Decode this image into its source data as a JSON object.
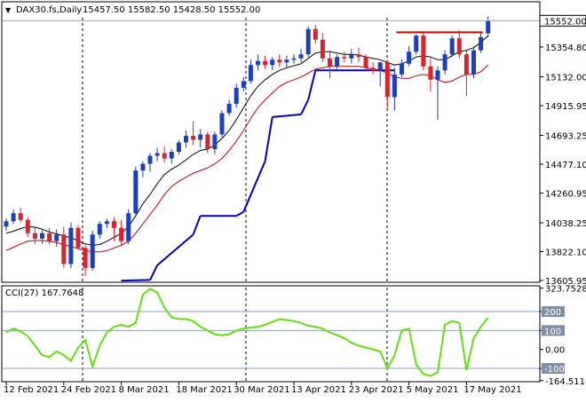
{
  "header": {
    "arrow": "▼",
    "symbol": "DAX30.fs,Daily",
    "ohlc": "15457.50 15582.50 15428.50 15552.00"
  },
  "cci_header": {
    "label": "CCI(27) 167.7648"
  },
  "chart_data": [
    {
      "type": "candlestick",
      "title": "DAX30.fs,Daily",
      "current_price": 15552.0,
      "current_price_label": "15552.00",
      "ylim": [
        13605.95,
        15650
      ],
      "y_ticks": [
        "15354.80",
        "15132.00",
        "14915.95",
        "14693.25",
        "14477.10",
        "14260.95",
        "14038.25",
        "13822.10",
        "13605.95"
      ],
      "y_tick_values": [
        15354.8,
        15132.0,
        14915.95,
        14693.25,
        14477.1,
        14260.95,
        14038.25,
        13822.1,
        13605.95
      ],
      "x_ticks": [
        "12 Feb 2021",
        "24 Feb 2021",
        "8 Mar 2021",
        "18 Mar 2021",
        "30 Mar 2021",
        "13 Apr 2021",
        "23 Apr 2021",
        "5 May 2021",
        "17 May 2021"
      ],
      "x_tick_bar_index": [
        0,
        8,
        16,
        24,
        32,
        40,
        48,
        56,
        64
      ],
      "period_separators_bar_index": [
        11,
        30,
        51
      ],
      "colors": {
        "up": "#1a3fc0",
        "down": "#e0202a",
        "fast_ma": "#000000",
        "slow_ma": "#cc0000",
        "trail": "#0000c0",
        "resistance": "#dd0000"
      },
      "candles": [
        {
          "o": 14010,
          "h": 14070,
          "l": 13980,
          "c": 14050
        },
        {
          "o": 14050,
          "h": 14140,
          "l": 14030,
          "c": 14110
        },
        {
          "o": 14110,
          "h": 14150,
          "l": 14040,
          "c": 14060
        },
        {
          "o": 14060,
          "h": 14080,
          "l": 13930,
          "c": 13960
        },
        {
          "o": 13960,
          "h": 14000,
          "l": 13880,
          "c": 13920
        },
        {
          "o": 13920,
          "h": 13990,
          "l": 13880,
          "c": 13960
        },
        {
          "o": 13960,
          "h": 14000,
          "l": 13880,
          "c": 13900
        },
        {
          "o": 13900,
          "h": 13990,
          "l": 13860,
          "c": 13950
        },
        {
          "o": 13950,
          "h": 14010,
          "l": 13700,
          "c": 13730
        },
        {
          "o": 13730,
          "h": 14040,
          "l": 13700,
          "c": 14000
        },
        {
          "o": 14000,
          "h": 14020,
          "l": 13840,
          "c": 13850
        },
        {
          "o": 13850,
          "h": 13870,
          "l": 13640,
          "c": 13700
        },
        {
          "o": 13700,
          "h": 13980,
          "l": 13680,
          "c": 13950
        },
        {
          "o": 13950,
          "h": 14050,
          "l": 13920,
          "c": 14030
        },
        {
          "o": 14030,
          "h": 14070,
          "l": 14000,
          "c": 14050
        },
        {
          "o": 14050,
          "h": 14080,
          "l": 13900,
          "c": 14000
        },
        {
          "o": 14000,
          "h": 14060,
          "l": 13870,
          "c": 13900
        },
        {
          "o": 13900,
          "h": 14140,
          "l": 13880,
          "c": 14110
        },
        {
          "o": 14110,
          "h": 14460,
          "l": 14100,
          "c": 14430
        },
        {
          "o": 14430,
          "h": 14500,
          "l": 14380,
          "c": 14480
        },
        {
          "o": 14480,
          "h": 14560,
          "l": 14420,
          "c": 14540
        },
        {
          "o": 14540,
          "h": 14600,
          "l": 14500,
          "c": 14560
        },
        {
          "o": 14560,
          "h": 14610,
          "l": 14490,
          "c": 14520
        },
        {
          "o": 14520,
          "h": 14590,
          "l": 14480,
          "c": 14570
        },
        {
          "o": 14570,
          "h": 14660,
          "l": 14550,
          "c": 14640
        },
        {
          "o": 14640,
          "h": 14730,
          "l": 14600,
          "c": 14690
        },
        {
          "o": 14690,
          "h": 14800,
          "l": 14620,
          "c": 14660
        },
        {
          "o": 14660,
          "h": 14740,
          "l": 14600,
          "c": 14700
        },
        {
          "o": 14700,
          "h": 14720,
          "l": 14560,
          "c": 14590
        },
        {
          "o": 14590,
          "h": 14720,
          "l": 14550,
          "c": 14700
        },
        {
          "o": 14700,
          "h": 14880,
          "l": 14680,
          "c": 14860
        },
        {
          "o": 14860,
          "h": 14960,
          "l": 14840,
          "c": 14930
        },
        {
          "o": 14930,
          "h": 15080,
          "l": 14900,
          "c": 15050
        },
        {
          "o": 15050,
          "h": 15130,
          "l": 15020,
          "c": 15100
        },
        {
          "o": 15100,
          "h": 15260,
          "l": 15080,
          "c": 15220
        },
        {
          "o": 15220,
          "h": 15300,
          "l": 15180,
          "c": 15250
        },
        {
          "o": 15250,
          "h": 15290,
          "l": 15190,
          "c": 15220
        },
        {
          "o": 15220,
          "h": 15280,
          "l": 15180,
          "c": 15260
        },
        {
          "o": 15260,
          "h": 15300,
          "l": 15210,
          "c": 15240
        },
        {
          "o": 15240,
          "h": 15290,
          "l": 15200,
          "c": 15260
        },
        {
          "o": 15260,
          "h": 15300,
          "l": 15230,
          "c": 15270
        },
        {
          "o": 15270,
          "h": 15340,
          "l": 15240,
          "c": 15300
        },
        {
          "o": 15300,
          "h": 15510,
          "l": 15280,
          "c": 15490
        },
        {
          "o": 15490,
          "h": 15520,
          "l": 15380,
          "c": 15410
        },
        {
          "o": 15410,
          "h": 15460,
          "l": 15240,
          "c": 15270
        },
        {
          "o": 15270,
          "h": 15330,
          "l": 15120,
          "c": 15210
        },
        {
          "o": 15210,
          "h": 15300,
          "l": 15190,
          "c": 15280
        },
        {
          "o": 15280,
          "h": 15320,
          "l": 15240,
          "c": 15270
        },
        {
          "o": 15270,
          "h": 15340,
          "l": 15230,
          "c": 15300
        },
        {
          "o": 15300,
          "h": 15350,
          "l": 15240,
          "c": 15280
        },
        {
          "o": 15280,
          "h": 15300,
          "l": 15180,
          "c": 15200
        },
        {
          "o": 15200,
          "h": 15240,
          "l": 15150,
          "c": 15180
        },
        {
          "o": 15180,
          "h": 15240,
          "l": 15060,
          "c": 15240
        },
        {
          "o": 15240,
          "h": 15260,
          "l": 14890,
          "c": 14980
        },
        {
          "o": 14980,
          "h": 15200,
          "l": 14880,
          "c": 15150
        },
        {
          "o": 15150,
          "h": 15260,
          "l": 15130,
          "c": 15230
        },
        {
          "o": 15230,
          "h": 15360,
          "l": 15210,
          "c": 15320
        },
        {
          "o": 15320,
          "h": 15450,
          "l": 15300,
          "c": 15440
        },
        {
          "o": 15440,
          "h": 15460,
          "l": 15180,
          "c": 15210
        },
        {
          "o": 15210,
          "h": 15270,
          "l": 15020,
          "c": 15110
        },
        {
          "o": 15110,
          "h": 15210,
          "l": 14810,
          "c": 15180
        },
        {
          "o": 15180,
          "h": 15330,
          "l": 15150,
          "c": 15300
        },
        {
          "o": 15300,
          "h": 15440,
          "l": 15280,
          "c": 15420
        },
        {
          "o": 15420,
          "h": 15480,
          "l": 15270,
          "c": 15300
        },
        {
          "o": 15300,
          "h": 15330,
          "l": 14990,
          "c": 15150
        },
        {
          "o": 15150,
          "h": 15360,
          "l": 15120,
          "c": 15330
        },
        {
          "o": 15330,
          "h": 15460,
          "l": 15310,
          "c": 15430
        },
        {
          "o": 15457.5,
          "h": 15582.5,
          "l": 15428.5,
          "c": 15552
        }
      ],
      "fast_ma": [
        13960,
        13975,
        13995,
        14010,
        14005,
        13990,
        13970,
        13955,
        13940,
        13925,
        13905,
        13880,
        13870,
        13875,
        13900,
        13930,
        13960,
        14010,
        14090,
        14180,
        14250,
        14330,
        14400,
        14440,
        14470,
        14510,
        14550,
        14580,
        14590,
        14620,
        14670,
        14730,
        14810,
        14900,
        14990,
        15060,
        15110,
        15150,
        15180,
        15200,
        15215,
        15230,
        15270,
        15310,
        15320,
        15320,
        15310,
        15300,
        15300,
        15295,
        15280,
        15270,
        15260,
        15240,
        15220,
        15230,
        15250,
        15280,
        15290,
        15280,
        15260,
        15260,
        15290,
        15320,
        15330,
        15350,
        15390,
        15440
      ],
      "slow_ma": [
        13830,
        13855,
        13880,
        13900,
        13905,
        13905,
        13900,
        13890,
        13875,
        13860,
        13845,
        13830,
        13820,
        13820,
        13830,
        13850,
        13870,
        13900,
        13960,
        14030,
        14100,
        14170,
        14250,
        14310,
        14350,
        14380,
        14410,
        14430,
        14450,
        14480,
        14520,
        14580,
        14650,
        14730,
        14820,
        14900,
        14960,
        15010,
        15060,
        15090,
        15110,
        15130,
        15160,
        15190,
        15200,
        15210,
        15210,
        15210,
        15210,
        15210,
        15200,
        15190,
        15180,
        15160,
        15130,
        15120,
        15120,
        15140,
        15150,
        15140,
        15110,
        15090,
        15100,
        15130,
        15150,
        15150,
        15170,
        15220
      ],
      "trail_segments": [
        {
          "from": 16,
          "to": 20,
          "values": [
            13605,
            13610
          ]
        },
        {
          "from": 20,
          "to": 21,
          "values": [
            13610,
            13720
          ]
        },
        {
          "from": 21,
          "to": 26,
          "values": [
            13720,
            13950
          ]
        },
        {
          "from": 26,
          "to": 27,
          "values": [
            13950,
            14090
          ]
        },
        {
          "from": 27,
          "to": 32,
          "values": [
            14090,
            14090
          ]
        },
        {
          "from": 32,
          "to": 33,
          "values": [
            14090,
            14120
          ]
        },
        {
          "from": 33,
          "to": 36,
          "values": [
            14120,
            14500
          ]
        },
        {
          "from": 36,
          "to": 37,
          "values": [
            14500,
            14830
          ]
        },
        {
          "from": 37,
          "to": 41,
          "values": [
            14830,
            14850
          ]
        },
        {
          "from": 41,
          "to": 42,
          "values": [
            14850,
            14960
          ]
        },
        {
          "from": 42,
          "to": 43,
          "values": [
            14960,
            15180
          ]
        },
        {
          "from": 43,
          "to": 54,
          "values": [
            15180,
            15180
          ]
        }
      ],
      "resistance_line": {
        "from": 54,
        "to": 67,
        "value": 15465
      }
    },
    {
      "type": "line",
      "title": "CCI(27) 167.7648",
      "last_value": 167.7648,
      "ylim": [
        -164.5118,
        323.7528
      ],
      "y_ticks": [
        "323.7528",
        "200",
        "100",
        "0.00",
        "-100",
        "-164.5118"
      ],
      "y_tick_values": [
        323.7528,
        200,
        100,
        0,
        -100,
        -164.5118
      ],
      "levels": [
        200,
        100,
        -100
      ],
      "highlighted_ticks": [
        "200",
        "100",
        "-100"
      ],
      "color": "#66dd11",
      "values": [
        90,
        110,
        95,
        70,
        20,
        -30,
        -40,
        -10,
        -30,
        -60,
        10,
        50,
        -90,
        20,
        90,
        120,
        130,
        120,
        140,
        290,
        320,
        300,
        220,
        170,
        160,
        160,
        150,
        120,
        100,
        80,
        75,
        80,
        100,
        110,
        115,
        120,
        130,
        145,
        160,
        155,
        150,
        140,
        125,
        120,
        110,
        90,
        75,
        60,
        35,
        20,
        10,
        0,
        -10,
        -100,
        -30,
        100,
        110,
        -80,
        -130,
        -140,
        -120,
        130,
        150,
        140,
        -110,
        60,
        120,
        167.7648
      ]
    }
  ]
}
